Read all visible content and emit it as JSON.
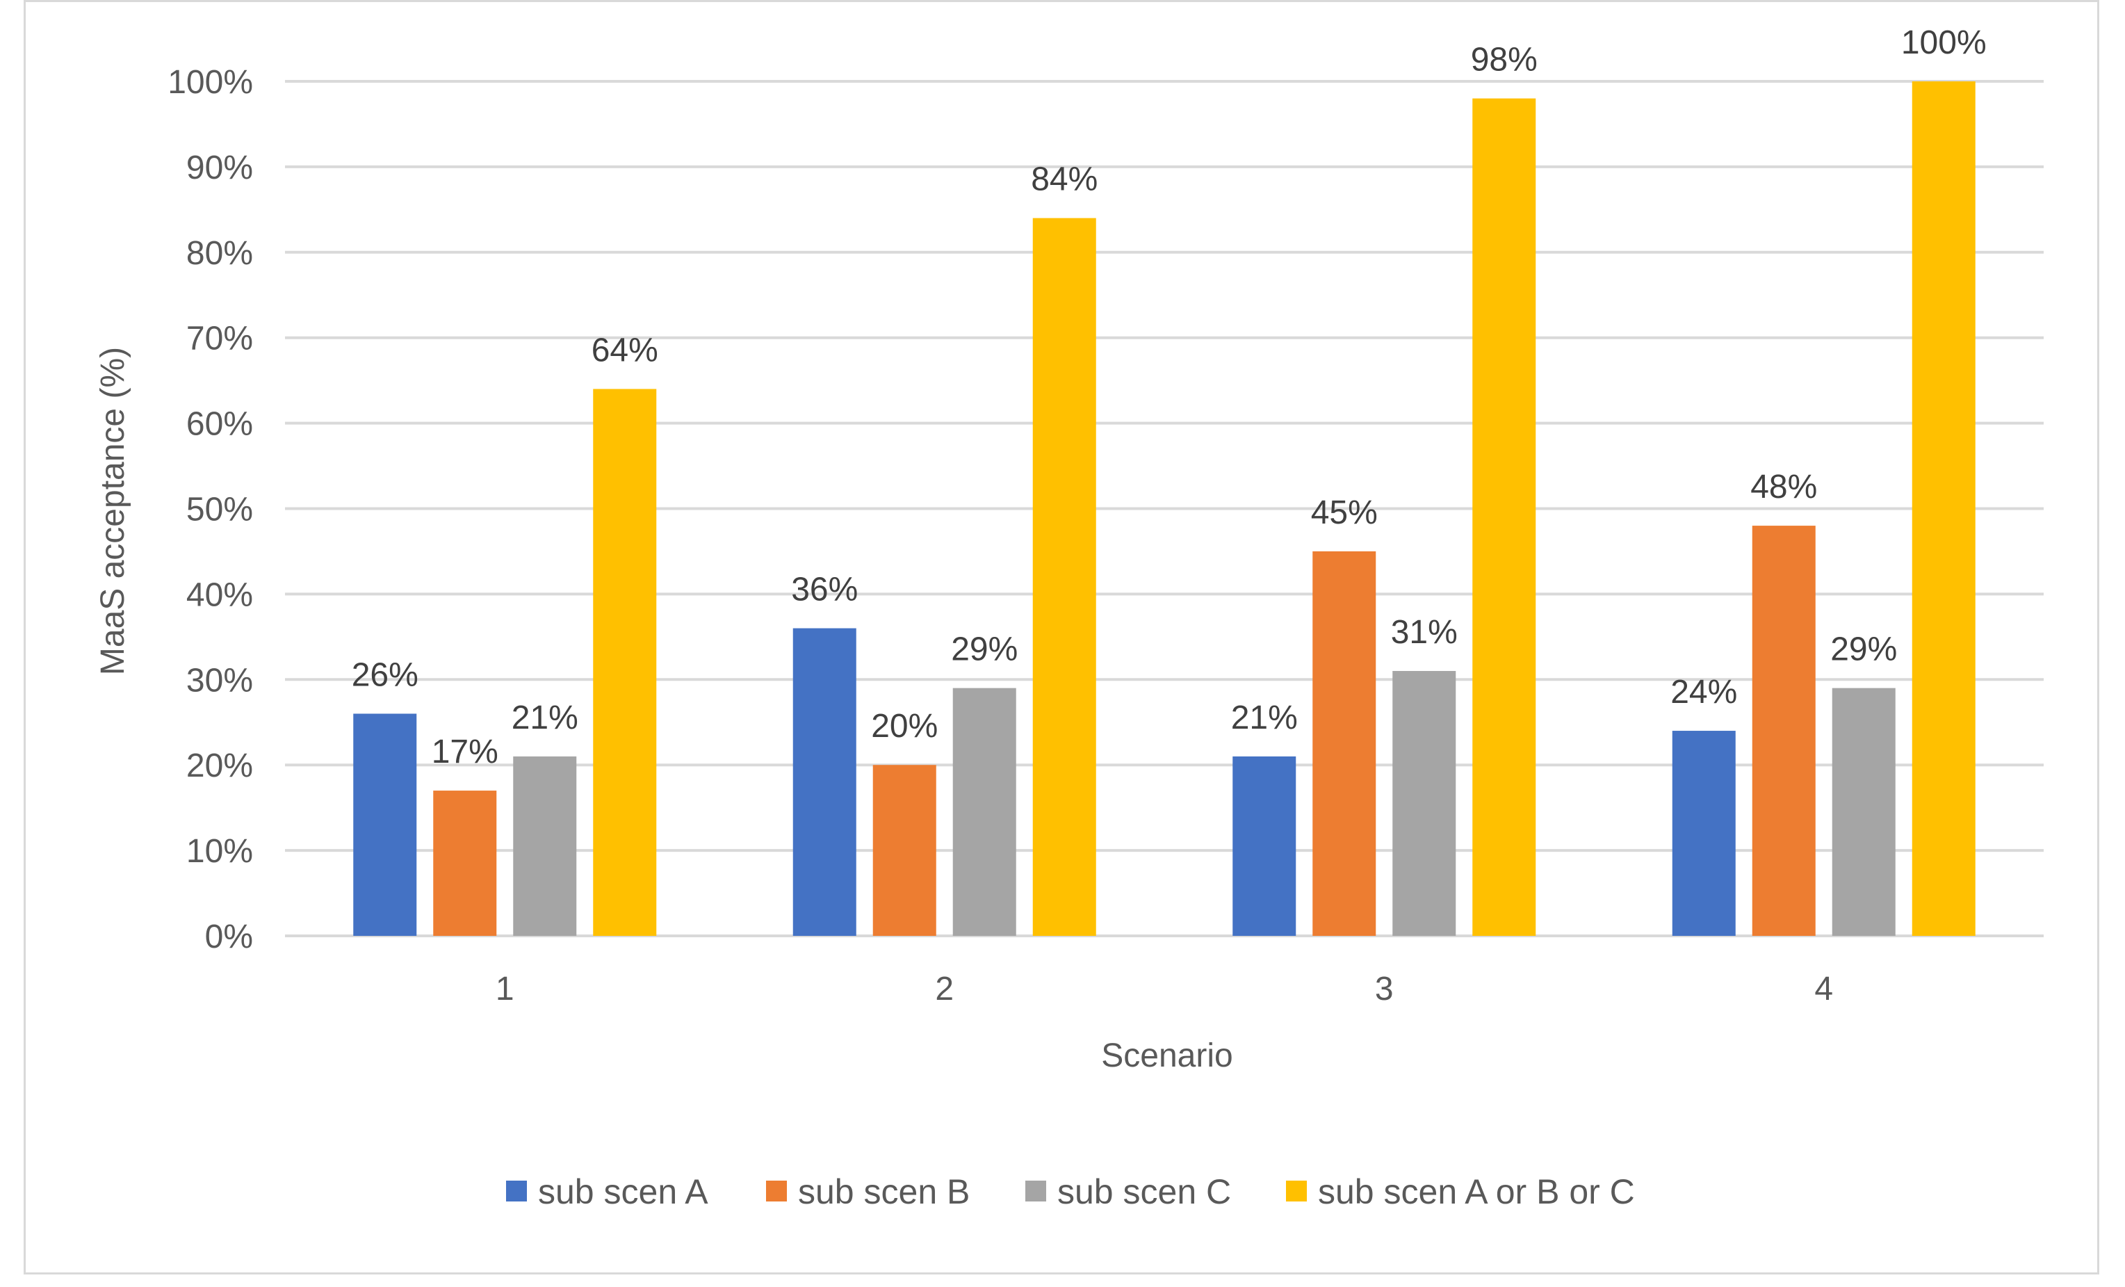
{
  "chart_data": {
    "type": "bar",
    "title": "",
    "xlabel": "Scenario",
    "ylabel": "MaaS acceptance (%)",
    "ylim": [
      0,
      100
    ],
    "ytick_labels": [
      "0%",
      "10%",
      "20%",
      "30%",
      "40%",
      "50%",
      "60%",
      "70%",
      "80%",
      "90%",
      "100%"
    ],
    "categories": [
      "1",
      "2",
      "3",
      "4"
    ],
    "grid": true,
    "legend_position": "bottom",
    "series": [
      {
        "name": "sub scen A",
        "color": "#4472c4",
        "values": [
          26,
          36,
          21,
          24
        ],
        "labels": [
          "26%",
          "36%",
          "21%",
          "24%"
        ]
      },
      {
        "name": "sub scen B",
        "color": "#ed7d31",
        "values": [
          17,
          20,
          45,
          48
        ],
        "labels": [
          "17%",
          "20%",
          "45%",
          "48%"
        ]
      },
      {
        "name": "sub scen C",
        "color": "#a5a5a5",
        "values": [
          21,
          29,
          31,
          29
        ],
        "labels": [
          "21%",
          "29%",
          "31%",
          "29%"
        ]
      },
      {
        "name": "sub scen A or B or C",
        "color": "#ffc000",
        "values": [
          64,
          84,
          98,
          100
        ],
        "labels": [
          "64%",
          "84%",
          "98%",
          "100%"
        ]
      }
    ]
  }
}
